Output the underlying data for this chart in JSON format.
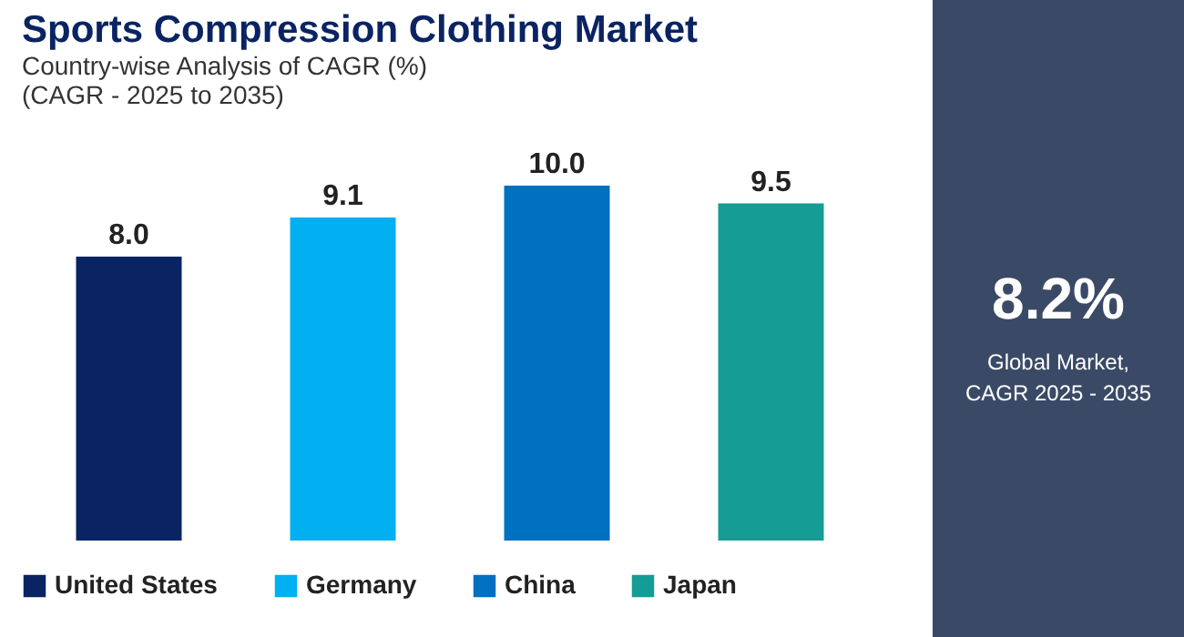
{
  "chart_data": [
    {
      "type": "bar",
      "title": "Sports Compression Clothing Market",
      "subtitle": "Country-wise Analysis of CAGR (%)\n(CAGR - 2025 to 2035)",
      "categories": [
        "United States",
        "Germany",
        "China",
        "Japan"
      ],
      "values": [
        8.0,
        9.1,
        10.0,
        9.5
      ],
      "value_labels": [
        "8.0",
        "9.1",
        "10.0",
        "9.5"
      ],
      "colors": [
        "#0a2463",
        "#00b0f0",
        "#0070c0",
        "#159c94"
      ],
      "tick_labels": false,
      "grid": false
    },
    {
      "type": "other",
      "title": "8.2%",
      "annotations": [
        "Global Market,\nCAGR 2025 - 2035"
      ]
    }
  ]
}
